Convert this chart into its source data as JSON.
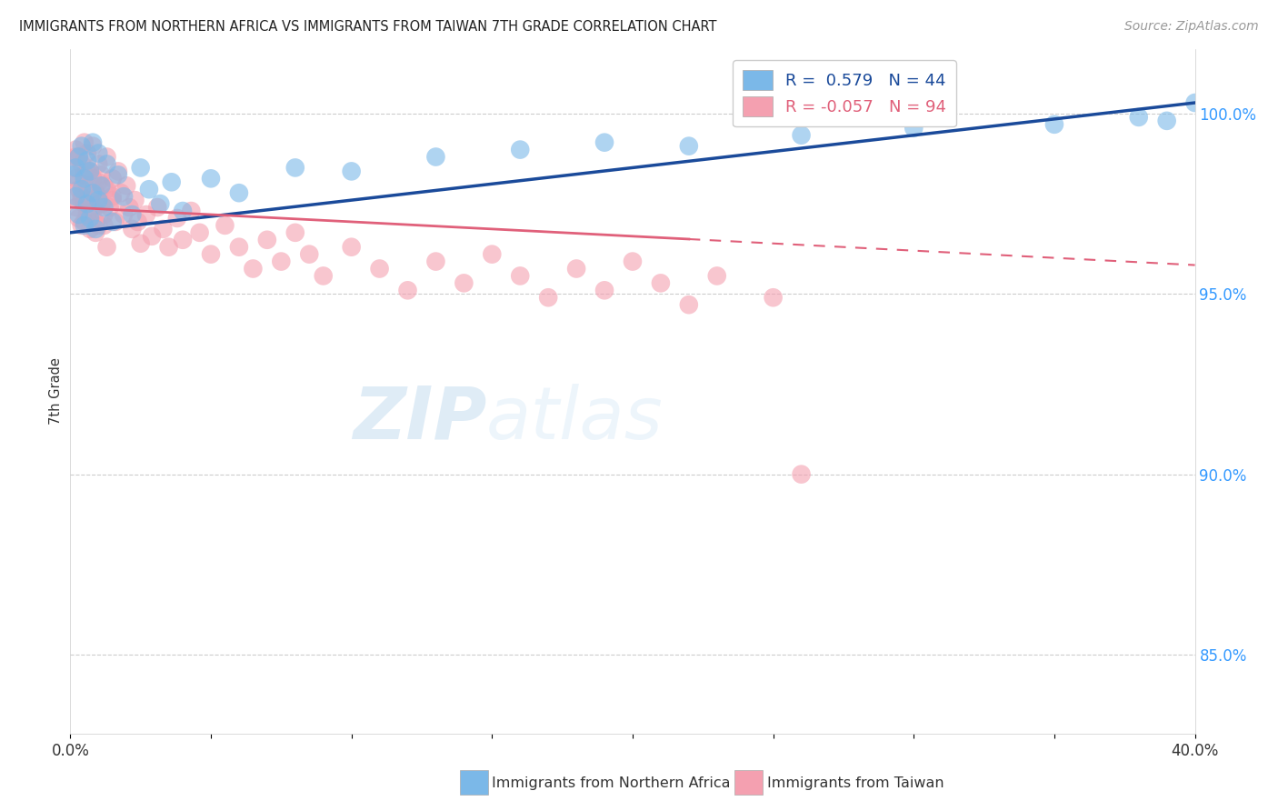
{
  "title": "IMMIGRANTS FROM NORTHERN AFRICA VS IMMIGRANTS FROM TAIWAN 7TH GRADE CORRELATION CHART",
  "source_text": "Source: ZipAtlas.com",
  "ylabel": "7th Grade",
  "xmin": 0.0,
  "xmax": 0.4,
  "ymin": 0.828,
  "ymax": 1.018,
  "right_yticks": [
    1.0,
    0.95,
    0.9,
    0.85
  ],
  "right_yticklabels": [
    "100.0%",
    "95.0%",
    "90.0%",
    "85.0%"
  ],
  "xticks": [
    0.0,
    0.05,
    0.1,
    0.15,
    0.2,
    0.25,
    0.3,
    0.35,
    0.4
  ],
  "xticklabels": [
    "0.0%",
    "",
    "",
    "",
    "",
    "",
    "",
    "",
    "40.0%"
  ],
  "legend_blue_label": "R =  0.579   N = 44",
  "legend_pink_label": "R = -0.057   N = 94",
  "color_blue": "#7bb8e8",
  "color_pink": "#f4a0b0",
  "trendline_blue_color": "#1a4a9a",
  "trendline_pink_color": "#e0607a",
  "watermark_zip": "ZIP",
  "watermark_atlas": "atlas",
  "blue_R": 0.579,
  "pink_R": -0.057,
  "blue_scatter_x": [
    0.001,
    0.002,
    0.002,
    0.003,
    0.003,
    0.004,
    0.004,
    0.005,
    0.005,
    0.006,
    0.006,
    0.007,
    0.007,
    0.008,
    0.008,
    0.009,
    0.01,
    0.01,
    0.011,
    0.012,
    0.013,
    0.015,
    0.017,
    0.019,
    0.022,
    0.025,
    0.028,
    0.032,
    0.036,
    0.04,
    0.05,
    0.06,
    0.08,
    0.1,
    0.13,
    0.16,
    0.19,
    0.22,
    0.26,
    0.3,
    0.35,
    0.38,
    0.39,
    0.4
  ],
  "blue_scatter_y": [
    0.983,
    0.985,
    0.977,
    0.972,
    0.988,
    0.979,
    0.991,
    0.969,
    0.982,
    0.975,
    0.987,
    0.971,
    0.984,
    0.978,
    0.992,
    0.968,
    0.976,
    0.989,
    0.98,
    0.974,
    0.986,
    0.97,
    0.983,
    0.977,
    0.972,
    0.985,
    0.979,
    0.975,
    0.981,
    0.973,
    0.982,
    0.978,
    0.985,
    0.984,
    0.988,
    0.99,
    0.992,
    0.991,
    0.994,
    0.996,
    0.997,
    0.999,
    0.998,
    1.003
  ],
  "pink_scatter_x": [
    0.001,
    0.001,
    0.002,
    0.002,
    0.002,
    0.003,
    0.003,
    0.003,
    0.004,
    0.004,
    0.004,
    0.005,
    0.005,
    0.005,
    0.006,
    0.006,
    0.006,
    0.007,
    0.007,
    0.007,
    0.008,
    0.008,
    0.008,
    0.009,
    0.009,
    0.01,
    0.01,
    0.01,
    0.011,
    0.011,
    0.012,
    0.012,
    0.013,
    0.013,
    0.014,
    0.015,
    0.015,
    0.016,
    0.017,
    0.018,
    0.019,
    0.02,
    0.021,
    0.022,
    0.023,
    0.024,
    0.025,
    0.027,
    0.029,
    0.031,
    0.033,
    0.035,
    0.038,
    0.04,
    0.043,
    0.046,
    0.05,
    0.055,
    0.06,
    0.065,
    0.07,
    0.075,
    0.08,
    0.085,
    0.09,
    0.1,
    0.11,
    0.12,
    0.13,
    0.14,
    0.15,
    0.16,
    0.17,
    0.18,
    0.19,
    0.2,
    0.21,
    0.22,
    0.23,
    0.25,
    0.002,
    0.003,
    0.004,
    0.005,
    0.006,
    0.007,
    0.008,
    0.009,
    0.01,
    0.011,
    0.012,
    0.013,
    0.015,
    0.26
  ],
  "pink_scatter_y": [
    0.985,
    0.977,
    0.99,
    0.982,
    0.974,
    0.988,
    0.979,
    0.971,
    0.986,
    0.977,
    0.969,
    0.983,
    0.975,
    0.992,
    0.98,
    0.972,
    0.989,
    0.984,
    0.976,
    0.968,
    0.982,
    0.974,
    0.991,
    0.978,
    0.97,
    0.986,
    0.977,
    0.969,
    0.983,
    0.975,
    0.98,
    0.972,
    0.988,
    0.979,
    0.974,
    0.982,
    0.976,
    0.97,
    0.984,
    0.978,
    0.972,
    0.98,
    0.974,
    0.968,
    0.976,
    0.97,
    0.964,
    0.972,
    0.966,
    0.974,
    0.968,
    0.963,
    0.971,
    0.965,
    0.973,
    0.967,
    0.961,
    0.969,
    0.963,
    0.957,
    0.965,
    0.959,
    0.967,
    0.961,
    0.955,
    0.963,
    0.957,
    0.951,
    0.959,
    0.953,
    0.961,
    0.955,
    0.949,
    0.957,
    0.951,
    0.959,
    0.953,
    0.947,
    0.955,
    0.949,
    0.988,
    0.981,
    0.976,
    0.97,
    0.984,
    0.978,
    0.973,
    0.967,
    0.981,
    0.975,
    0.969,
    0.963,
    0.977,
    0.9
  ]
}
